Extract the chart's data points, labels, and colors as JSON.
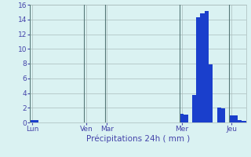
{
  "values": [
    0.3,
    0.3,
    0,
    0,
    0,
    0,
    0,
    0,
    0,
    0,
    0,
    0,
    0,
    0,
    0,
    0,
    0,
    0,
    0,
    0,
    0,
    0,
    0,
    0,
    0,
    0,
    0,
    0,
    0,
    0,
    0,
    0,
    0,
    0,
    0,
    0,
    1.2,
    1.1,
    0,
    3.7,
    14.3,
    14.8,
    15.1,
    7.9,
    0,
    2.0,
    1.9,
    0,
    1.0,
    1.0,
    0.3,
    0.2
  ],
  "day_labels": [
    "Lun",
    "Ven",
    "Mar",
    "Mer",
    "Jeu"
  ],
  "day_positions": [
    0,
    13,
    18,
    36,
    48
  ],
  "xlabel": "Précipitations 24h ( mm )",
  "ylim": [
    0,
    16
  ],
  "yticks": [
    0,
    2,
    4,
    6,
    8,
    10,
    12,
    14,
    16
  ],
  "bar_color": "#1a3fcc",
  "bg_color": "#daf2f2",
  "grid_color": "#aabcbc",
  "label_color": "#4444aa",
  "tick_color": "#4444aa",
  "sep_color": "#557777"
}
